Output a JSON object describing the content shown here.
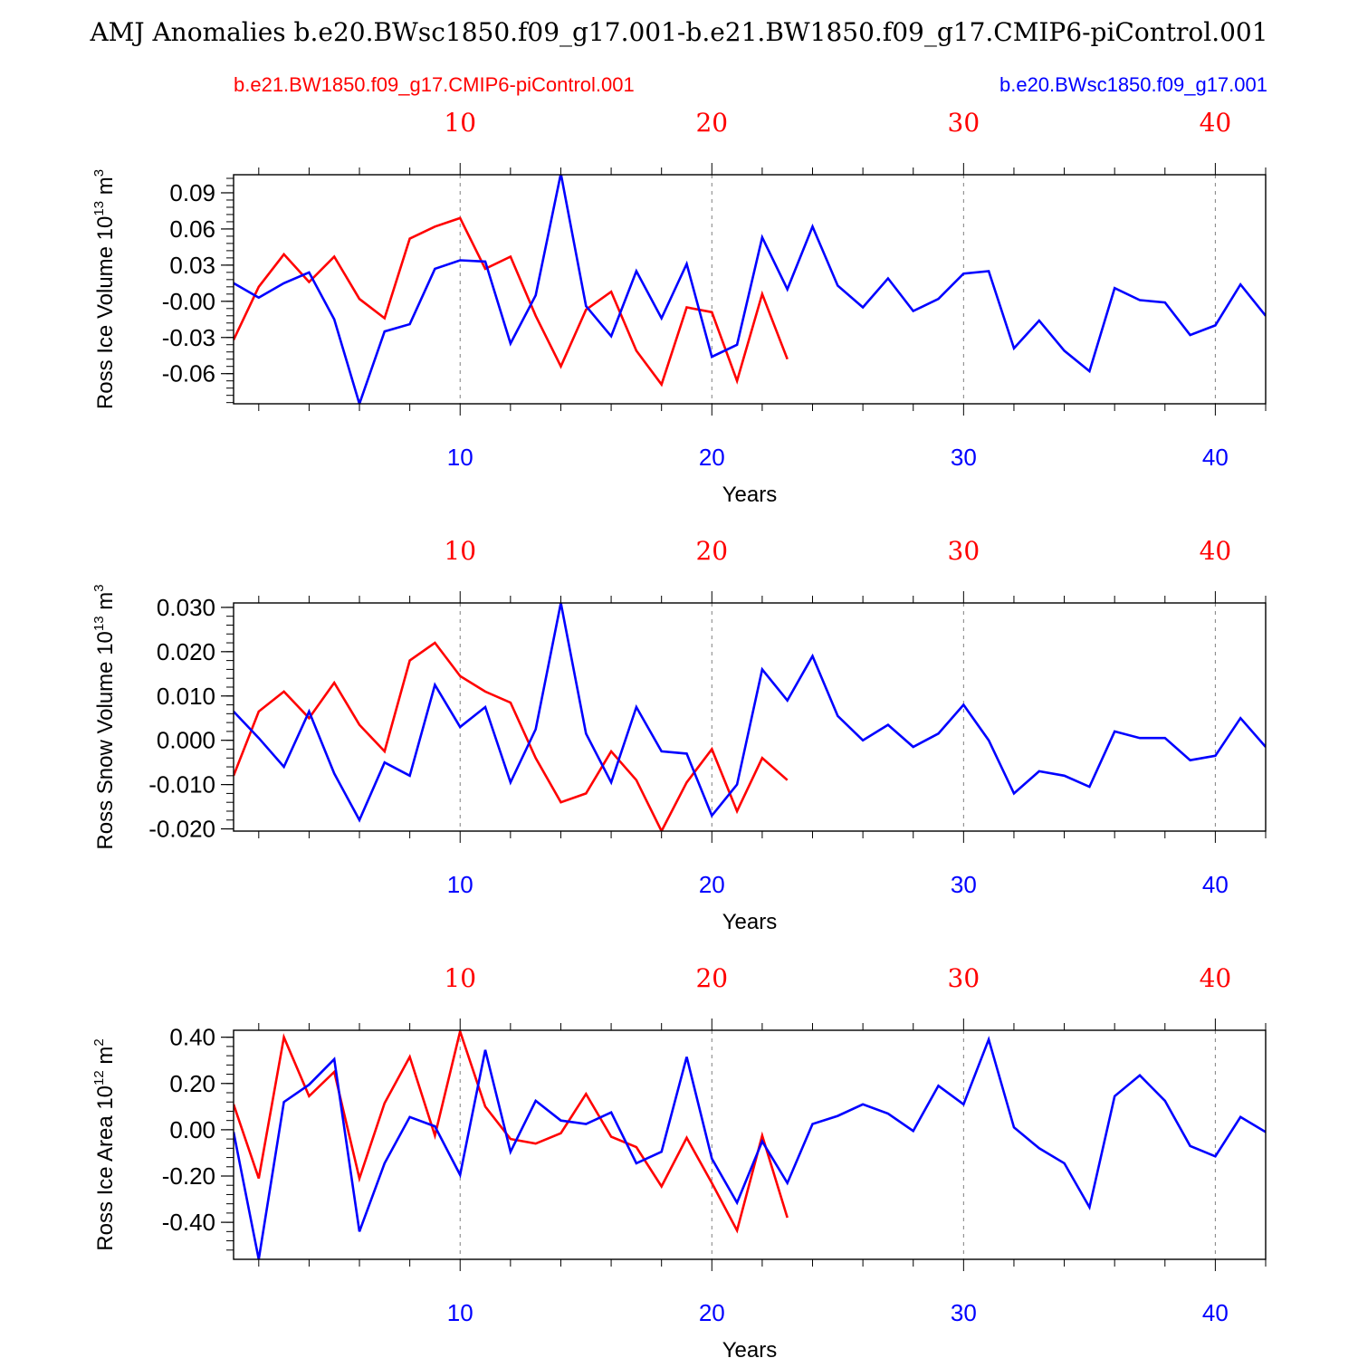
{
  "title": "AMJ Anomalies b.e20.BWsc1850.f09_g17.001-b.e21.BW1850.f09_g17.CMIP6-piControl.001",
  "legend": {
    "left": {
      "label": "b.e21.BW1850.f09_g17.CMIP6-piControl.001",
      "color": "#ff0000"
    },
    "right": {
      "label": "b.e20.BWsc1850.f09_g17.001",
      "color": "#0000ff"
    }
  },
  "colors": {
    "red": "#ff0000",
    "blue": "#0000ff",
    "axis": "#000000",
    "grid": "#808080"
  },
  "chart_data": [
    {
      "type": "line",
      "ylabel": "Ross Ice Volume 10",
      "ylabel_sup": "13",
      "ylabel_unit": "m",
      "ylabel_unit_sup": "3",
      "xlabel": "Years",
      "xlim": [
        1,
        42
      ],
      "ylim": [
        -0.085,
        0.105
      ],
      "yticks": [
        -0.06,
        -0.03,
        0.0,
        0.03,
        0.06,
        0.09
      ],
      "ytick_labels": [
        "-0.06",
        "-0.03",
        "-0.00",
        "0.03",
        "0.06",
        "0.09"
      ],
      "yminor_step": 0.006,
      "xticks": [
        10,
        20,
        30,
        40
      ],
      "xtick_labels": [
        "10",
        "20",
        "30",
        "40"
      ],
      "xgrid": [
        10,
        20,
        30,
        40
      ],
      "series": [
        {
          "name": "b.e21.BW1850.f09_g17.CMIP6-piControl.001",
          "color": "#ff0000",
          "x": [
            1,
            2,
            3,
            4,
            5,
            6,
            7,
            8,
            9,
            10,
            11,
            12,
            13,
            14,
            15,
            16,
            17,
            18,
            19,
            20,
            21,
            22,
            23
          ],
          "values": [
            -0.032,
            0.012,
            0.039,
            0.016,
            0.037,
            0.002,
            -0.014,
            0.052,
            0.062,
            0.069,
            0.027,
            0.037,
            -0.012,
            -0.054,
            -0.007,
            0.008,
            -0.041,
            -0.069,
            -0.005,
            -0.009,
            -0.066,
            0.006,
            -0.048
          ]
        },
        {
          "name": "b.e20.BWsc1850.f09_g17.001",
          "color": "#0000ff",
          "x": [
            1,
            2,
            3,
            4,
            5,
            6,
            7,
            8,
            9,
            10,
            11,
            12,
            13,
            14,
            15,
            16,
            17,
            18,
            19,
            20,
            21,
            22,
            23,
            24,
            25,
            26,
            27,
            28,
            29,
            30,
            31,
            32,
            33,
            34,
            35,
            36,
            37,
            38,
            39,
            40,
            41,
            42
          ],
          "values": [
            0.015,
            0.003,
            0.015,
            0.024,
            -0.015,
            -0.085,
            -0.025,
            -0.019,
            0.027,
            0.034,
            0.033,
            -0.035,
            0.005,
            0.106,
            -0.004,
            -0.029,
            0.025,
            -0.014,
            0.031,
            -0.046,
            -0.036,
            0.053,
            0.01,
            0.062,
            0.013,
            -0.005,
            0.019,
            -0.008,
            0.002,
            0.023,
            0.025,
            -0.039,
            -0.016,
            -0.041,
            -0.058,
            0.011,
            0.001,
            -0.001,
            -0.028,
            -0.02,
            0.014,
            -0.012
          ]
        }
      ]
    },
    {
      "type": "line",
      "ylabel": "Ross Snow Volume 10",
      "ylabel_sup": "13",
      "ylabel_unit": "m",
      "ylabel_unit_sup": "3",
      "xlabel": "Years",
      "xlim": [
        1,
        42
      ],
      "ylim": [
        -0.0205,
        0.031
      ],
      "yticks": [
        -0.02,
        -0.01,
        0.0,
        0.01,
        0.02,
        0.03
      ],
      "ytick_labels": [
        "-0.020",
        "-0.010",
        "0.000",
        "0.010",
        "0.020",
        "0.030"
      ],
      "yminor_step": 0.002,
      "xticks": [
        10,
        20,
        30,
        40
      ],
      "xtick_labels": [
        "10",
        "20",
        "30",
        "40"
      ],
      "xgrid": [
        10,
        20,
        30,
        40
      ],
      "series": [
        {
          "name": "b.e21.BW1850.f09_g17.CMIP6-piControl.001",
          "color": "#ff0000",
          "x": [
            1,
            2,
            3,
            4,
            5,
            6,
            7,
            8,
            9,
            10,
            11,
            12,
            13,
            14,
            15,
            16,
            17,
            18,
            19,
            20,
            21,
            22,
            23
          ],
          "values": [
            -0.008,
            0.0065,
            0.011,
            0.005,
            0.013,
            0.0035,
            -0.0025,
            0.018,
            0.022,
            0.0145,
            0.011,
            0.0085,
            -0.004,
            -0.014,
            -0.012,
            -0.0025,
            -0.009,
            -0.0205,
            -0.0095,
            -0.002,
            -0.016,
            -0.004,
            -0.009
          ]
        },
        {
          "name": "b.e20.BWsc1850.f09_g17.001",
          "color": "#0000ff",
          "x": [
            1,
            2,
            3,
            4,
            5,
            6,
            7,
            8,
            9,
            10,
            11,
            12,
            13,
            14,
            15,
            16,
            17,
            18,
            19,
            20,
            21,
            22,
            23,
            24,
            25,
            26,
            27,
            28,
            29,
            30,
            31,
            32,
            33,
            34,
            35,
            36,
            37,
            38,
            39,
            40,
            41,
            42
          ],
          "values": [
            0.0065,
            0.0005,
            -0.006,
            0.0065,
            -0.0075,
            -0.018,
            -0.005,
            -0.008,
            0.0125,
            0.003,
            0.0075,
            -0.0095,
            0.0025,
            0.031,
            0.0015,
            -0.0095,
            0.0075,
            -0.0025,
            -0.003,
            -0.017,
            -0.01,
            0.016,
            0.009,
            0.019,
            0.0055,
            0.0,
            0.0035,
            -0.0015,
            0.0015,
            0.008,
            0.0,
            -0.012,
            -0.007,
            -0.008,
            -0.0105,
            0.002,
            0.0005,
            0.0005,
            -0.0045,
            -0.0035,
            0.005,
            -0.0015
          ]
        }
      ]
    },
    {
      "type": "line",
      "ylabel": "Ross Ice Area 10",
      "ylabel_sup": "12",
      "ylabel_unit": "m",
      "ylabel_unit_sup": "2",
      "xlabel": "Years",
      "xlim": [
        1,
        42
      ],
      "ylim": [
        -0.56,
        0.43
      ],
      "yticks": [
        -0.4,
        -0.2,
        0.0,
        0.2,
        0.4
      ],
      "ytick_labels": [
        "-0.40",
        "-0.20",
        "0.00",
        "0.20",
        "0.40"
      ],
      "yminor_step": 0.04,
      "xticks": [
        10,
        20,
        30,
        40
      ],
      "xtick_labels": [
        "10",
        "20",
        "30",
        "40"
      ],
      "xgrid": [
        10,
        20,
        30,
        40
      ],
      "series": [
        {
          "name": "b.e21.BW1850.f09_g17.CMIP6-piControl.001",
          "color": "#ff0000",
          "x": [
            1,
            2,
            3,
            4,
            5,
            6,
            7,
            8,
            9,
            10,
            11,
            12,
            13,
            14,
            15,
            16,
            17,
            18,
            19,
            20,
            21,
            22,
            23
          ],
          "values": [
            0.11,
            -0.21,
            0.4,
            0.145,
            0.25,
            -0.21,
            0.115,
            0.315,
            -0.025,
            0.425,
            0.1,
            -0.04,
            -0.06,
            -0.015,
            0.155,
            -0.03,
            -0.075,
            -0.245,
            -0.035,
            -0.23,
            -0.435,
            -0.025,
            -0.38
          ]
        },
        {
          "name": "b.e20.BWsc1850.f09_g17.001",
          "color": "#0000ff",
          "x": [
            1,
            2,
            3,
            4,
            5,
            6,
            7,
            8,
            9,
            10,
            11,
            12,
            13,
            14,
            15,
            16,
            17,
            18,
            19,
            20,
            21,
            22,
            23,
            24,
            25,
            26,
            27,
            28,
            29,
            30,
            31,
            32,
            33,
            34,
            35,
            36,
            37,
            38,
            39,
            40,
            41,
            42
          ],
          "values": [
            -0.01,
            -0.56,
            0.12,
            0.195,
            0.305,
            -0.44,
            -0.145,
            0.055,
            0.015,
            -0.195,
            0.345,
            -0.095,
            0.125,
            0.04,
            0.025,
            0.075,
            -0.145,
            -0.095,
            0.315,
            -0.125,
            -0.315,
            -0.05,
            -0.23,
            0.025,
            0.06,
            0.11,
            0.07,
            -0.005,
            0.19,
            0.11,
            0.39,
            0.01,
            -0.08,
            -0.145,
            -0.335,
            0.145,
            0.235,
            0.125,
            -0.07,
            -0.115,
            0.055,
            -0.01
          ]
        }
      ]
    }
  ]
}
